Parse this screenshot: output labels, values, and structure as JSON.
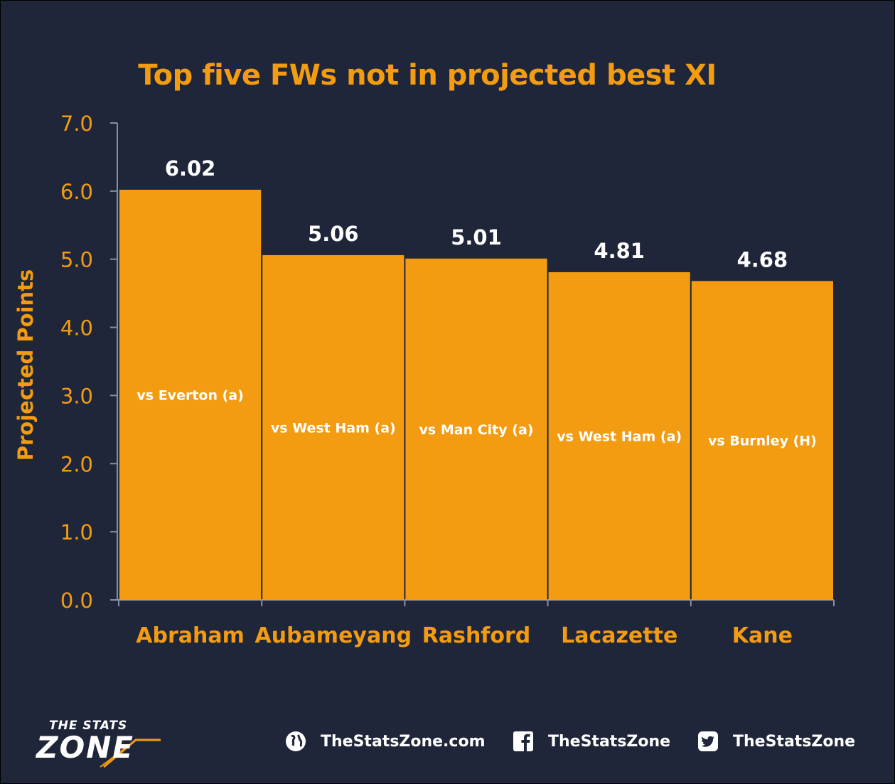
{
  "chart_data": {
    "type": "bar",
    "title": "Top five FWs not in projected best XI",
    "xlabel": "",
    "ylabel": "Projected Points",
    "categories": [
      "Abraham",
      "Aubameyang",
      "Rashford",
      "Lacazette",
      "Kane"
    ],
    "values": [
      6.02,
      5.06,
      5.01,
      4.81,
      4.68
    ],
    "value_labels": [
      "6.02",
      "5.06",
      "5.01",
      "4.81",
      "4.68"
    ],
    "bar_labels": [
      "vs Everton (a)",
      "vs West Ham (a)",
      "vs Man City (a)",
      "vs West Ham (a)",
      "vs Burnley (H)"
    ],
    "ylim": [
      0,
      7
    ],
    "yticks": [
      "0.0",
      "1.0",
      "2.0",
      "3.0",
      "4.0",
      "5.0",
      "6.0",
      "7.0"
    ],
    "grid": false,
    "colors": {
      "bar": "#f39c12",
      "background": "#1f2639",
      "text": "#f39c12",
      "label": "#ffffff"
    }
  },
  "footer": {
    "logo_top": "THE STATS",
    "logo_bottom": "ZONE",
    "website": {
      "icon": "globe-icon",
      "text": "TheStatsZone.com"
    },
    "facebook": {
      "icon": "facebook-icon",
      "text": "TheStatsZone"
    },
    "twitter": {
      "icon": "twitter-icon",
      "text": "TheStatsZone"
    }
  }
}
